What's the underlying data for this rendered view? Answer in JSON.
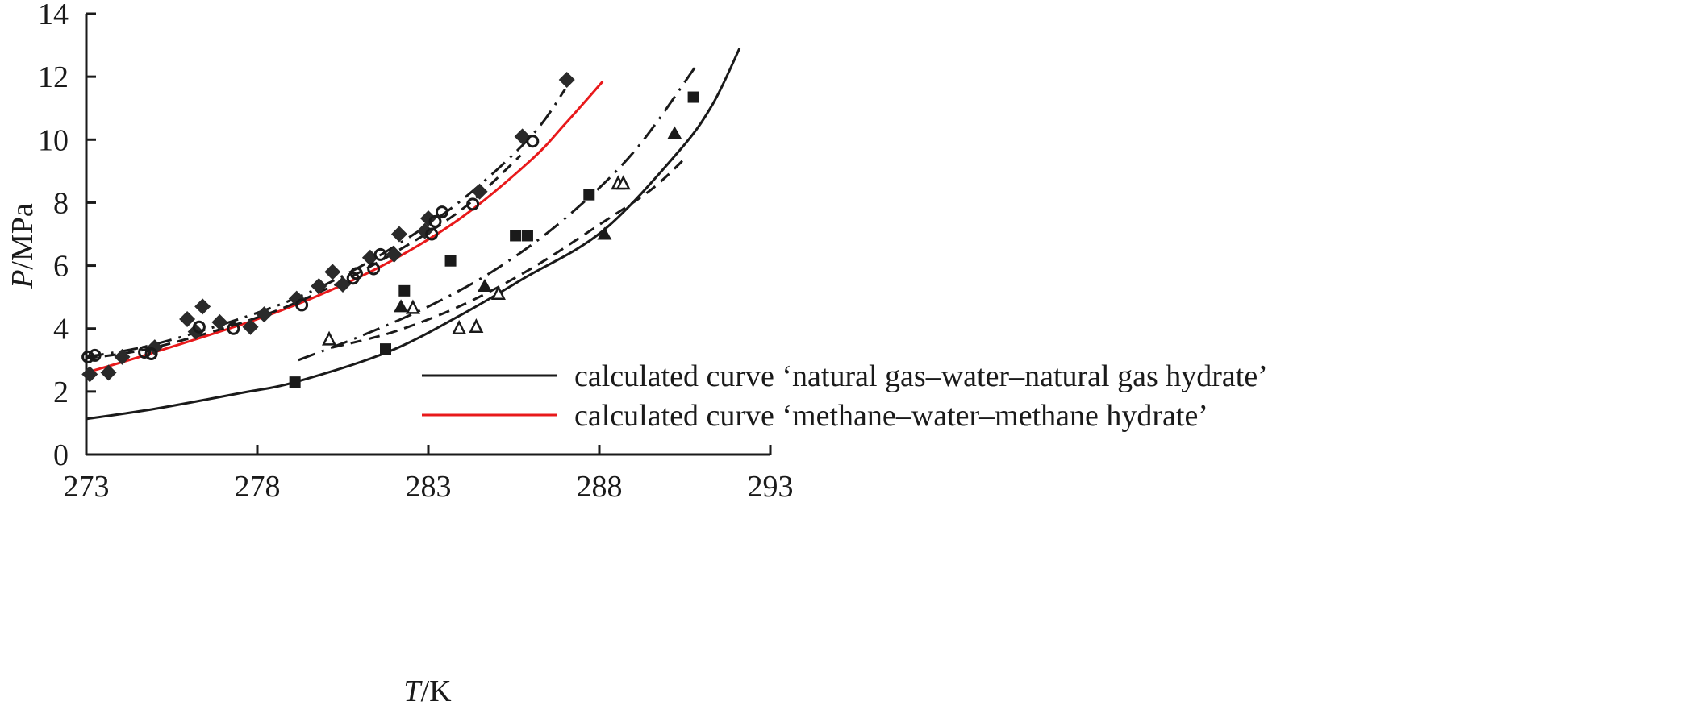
{
  "chart_data": {
    "type": "scatter",
    "title": "",
    "xlabel": {
      "italic": "T",
      "rest": "/K"
    },
    "ylabel": {
      "italic": "P",
      "rest": "/MPa"
    },
    "xlim": [
      273,
      293
    ],
    "ylim": [
      0,
      14
    ],
    "xticks": [
      "273",
      "278",
      "283",
      "288",
      "293"
    ],
    "yticks": [
      "0",
      "2",
      "4",
      "6",
      "8",
      "10",
      "12",
      "14"
    ],
    "grid": false,
    "legend_position": "bottom-right",
    "colors": {
      "axis": "#1a1a1a",
      "red": "#e8191b",
      "black": "#1a1a1a"
    },
    "lines": [
      {
        "name": "calculated curve ‘natural gas–water–natural gas hydrate’",
        "style": "solid",
        "color": "#1a1a1a",
        "in_legend": true,
        "points": [
          [
            273,
            1.13
          ],
          [
            275,
            1.45
          ],
          [
            277.5,
            1.95
          ],
          [
            279.1,
            2.3
          ],
          [
            281.8,
            3.25
          ],
          [
            283.9,
            4.4
          ],
          [
            285.8,
            5.6
          ],
          [
            288.1,
            7.1
          ],
          [
            290.3,
            9.6
          ],
          [
            291.3,
            11.1
          ],
          [
            292.1,
            12.9
          ]
        ]
      },
      {
        "name": "calculated curve ‘methane–water–methane hydrate’",
        "style": "solid",
        "color": "#e8191b",
        "in_legend": true,
        "points": [
          [
            273,
            2.6
          ],
          [
            275,
            3.25
          ],
          [
            278,
            4.3
          ],
          [
            280,
            5.15
          ],
          [
            282,
            6.2
          ],
          [
            284,
            7.55
          ],
          [
            286,
            9.35
          ],
          [
            287,
            10.5
          ],
          [
            288.1,
            11.85
          ]
        ]
      },
      {
        "name": "methane dash-dot",
        "style": "dashdot",
        "color": "#1a1a1a",
        "in_legend": false,
        "points": [
          [
            273,
            3.1
          ],
          [
            275,
            3.5
          ],
          [
            278,
            4.5
          ],
          [
            280,
            5.4
          ],
          [
            282,
            6.6
          ],
          [
            284,
            8.1
          ],
          [
            286,
            10.1
          ],
          [
            287,
            11.6
          ]
        ]
      },
      {
        "name": "methane dashed",
        "style": "dashed",
        "color": "#1a1a1a",
        "in_legend": false,
        "points": [
          [
            273,
            3.05
          ],
          [
            275,
            3.4
          ],
          [
            278,
            4.35
          ],
          [
            280,
            5.25
          ],
          [
            282,
            6.4
          ],
          [
            284,
            7.8
          ],
          [
            285.7,
            9.5
          ]
        ]
      },
      {
        "name": "natural gas dash-dot",
        "style": "dashdot",
        "color": "#1a1a1a",
        "in_legend": false,
        "points": [
          [
            279.2,
            3.0
          ],
          [
            281,
            3.75
          ],
          [
            283,
            4.7
          ],
          [
            285,
            5.9
          ],
          [
            287,
            7.5
          ],
          [
            289,
            9.6
          ],
          [
            290.8,
            12.3
          ]
        ]
      },
      {
        "name": "natural gas dashed",
        "style": "dashed",
        "color": "#1a1a1a",
        "in_legend": false,
        "points": [
          [
            280.2,
            3.4
          ],
          [
            282,
            3.9
          ],
          [
            284,
            4.75
          ],
          [
            286,
            5.9
          ],
          [
            288,
            7.3
          ],
          [
            289.5,
            8.4
          ],
          [
            290.5,
            9.4
          ]
        ]
      }
    ],
    "series": [
      {
        "name": "filled diamonds",
        "marker": "diamond-filled",
        "points": [
          [
            273.1,
            2.55
          ],
          [
            273.65,
            2.6
          ],
          [
            274.05,
            3.1
          ],
          [
            275.0,
            3.4
          ],
          [
            275.95,
            4.3
          ],
          [
            276.2,
            3.9
          ],
          [
            276.4,
            4.7
          ],
          [
            276.9,
            4.2
          ],
          [
            277.8,
            4.05
          ],
          [
            278.2,
            4.45
          ],
          [
            279.15,
            4.95
          ],
          [
            279.8,
            5.35
          ],
          [
            280.2,
            5.8
          ],
          [
            280.5,
            5.4
          ],
          [
            281.3,
            6.25
          ],
          [
            282.0,
            6.35
          ],
          [
            282.15,
            7.0
          ],
          [
            282.9,
            7.1
          ],
          [
            283.0,
            7.5
          ],
          [
            284.5,
            8.35
          ],
          [
            285.75,
            10.1
          ],
          [
            287.05,
            11.9
          ]
        ]
      },
      {
        "name": "open circles",
        "marker": "circle-open",
        "points": [
          [
            273.05,
            3.1
          ],
          [
            273.25,
            3.15
          ],
          [
            274.7,
            3.25
          ],
          [
            274.9,
            3.2
          ],
          [
            276.3,
            4.05
          ],
          [
            277.3,
            4.0
          ],
          [
            279.3,
            4.75
          ],
          [
            280.8,
            5.6
          ],
          [
            280.9,
            5.75
          ],
          [
            281.4,
            5.9
          ],
          [
            281.6,
            6.35
          ],
          [
            283.1,
            7.0
          ],
          [
            283.2,
            7.4
          ],
          [
            283.4,
            7.7
          ],
          [
            284.3,
            7.95
          ],
          [
            286.05,
            9.95
          ]
        ]
      },
      {
        "name": "filled squares",
        "marker": "square-filled",
        "points": [
          [
            279.1,
            2.3
          ],
          [
            281.75,
            3.35
          ],
          [
            282.3,
            5.2
          ],
          [
            283.65,
            6.15
          ],
          [
            285.55,
            6.95
          ],
          [
            285.9,
            6.95
          ],
          [
            287.7,
            8.25
          ],
          [
            290.75,
            11.35
          ]
        ]
      },
      {
        "name": "filled triangles",
        "marker": "triangle-filled",
        "points": [
          [
            282.2,
            4.7
          ],
          [
            284.65,
            5.35
          ],
          [
            288.15,
            7.0
          ],
          [
            290.2,
            10.2
          ]
        ]
      },
      {
        "name": "open triangles",
        "marker": "triangle-open",
        "points": [
          [
            280.1,
            3.65
          ],
          [
            282.55,
            4.65
          ],
          [
            283.9,
            4.0
          ],
          [
            284.4,
            4.05
          ],
          [
            285.05,
            5.1
          ],
          [
            288.55,
            8.6
          ],
          [
            288.7,
            8.6
          ]
        ]
      }
    ]
  }
}
